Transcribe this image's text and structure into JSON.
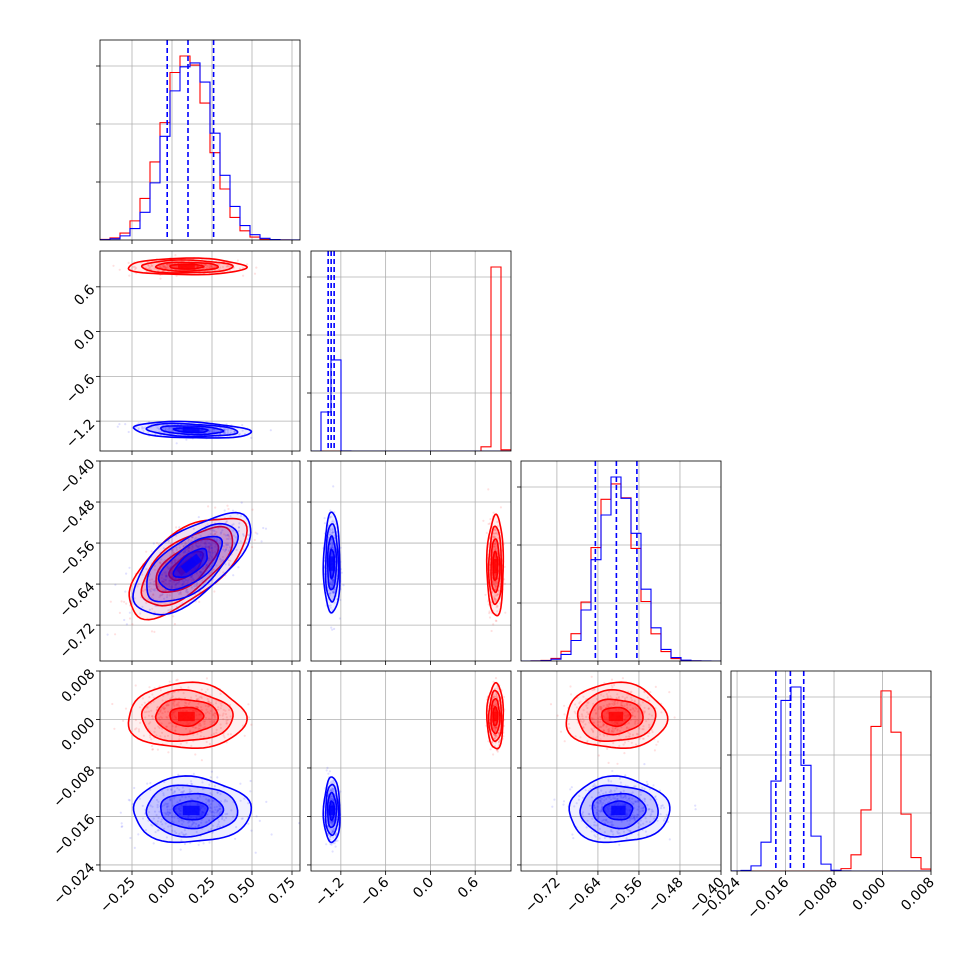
{
  "chart_data": {
    "type": "corner",
    "grid": true,
    "colors": {
      "red": "#ff0000",
      "blue": "#0000ff"
    },
    "quantile_line_style": "dashed",
    "params": [
      {
        "range": [
          -0.45,
          0.8
        ],
        "ticks": [
          -0.25,
          0.0,
          0.25,
          0.5,
          0.75
        ],
        "tick_labels": [
          "−0.25",
          "0.00",
          "0.25",
          "0.50",
          "0.75"
        ],
        "red": {
          "mean": 0.09,
          "sd": 0.15
        },
        "blue": {
          "mean": 0.12,
          "sd": 0.15
        },
        "quantiles": [
          -0.03,
          0.1,
          0.26
        ]
      },
      {
        "range": [
          -1.6,
          1.08
        ],
        "ticks": [
          -1.2,
          -0.6,
          0.0,
          0.6
        ],
        "tick_labels": [
          "−1.2",
          "−0.6",
          "0.0",
          "0.6"
        ],
        "red": {
          "mean": 0.87,
          "sd": 0.045
        },
        "blue": {
          "mean": -1.32,
          "sd": 0.045
        },
        "quantiles": [
          -1.37,
          -1.33,
          -1.29
        ]
      },
      {
        "range": [
          -0.79,
          -0.4
        ],
        "ticks": [
          -0.72,
          -0.64,
          -0.56,
          -0.48,
          -0.4
        ],
        "tick_labels": [
          "−0.72",
          "−0.64",
          "−0.56",
          "−0.48",
          "−0.40"
        ],
        "red": {
          "mean": -0.605,
          "sd": 0.04
        },
        "blue": {
          "mean": -0.6,
          "sd": 0.04
        },
        "quantiles": [
          -0.645,
          -0.604,
          -0.564
        ]
      },
      {
        "range": [
          -0.025,
          0.008
        ],
        "ticks": [
          -0.024,
          -0.016,
          -0.008,
          0.0,
          0.008
        ],
        "tick_labels": [
          "−0.024",
          "−0.016",
          "−0.008",
          "0.000",
          "0.008"
        ],
        "red": {
          "mean": 0.0005,
          "sd": 0.0022
        },
        "blue": {
          "mean": -0.015,
          "sd": 0.0022
        },
        "quantiles": [
          -0.0176,
          -0.0152,
          -0.013
        ]
      }
    ],
    "correlations": [
      {
        "pair": [
          0,
          1
        ],
        "red": 0.0,
        "blue": -0.25
      },
      {
        "pair": [
          0,
          2
        ],
        "red": 0.65,
        "blue": 0.65
      },
      {
        "pair": [
          1,
          2
        ],
        "red": 0.0,
        "blue": 0.0
      },
      {
        "pair": [
          0,
          3
        ],
        "red": 0.0,
        "blue": 0.0
      },
      {
        "pair": [
          1,
          3
        ],
        "red": 0.0,
        "blue": 0.0
      },
      {
        "pair": [
          2,
          3
        ],
        "red": 0.0,
        "blue": 0.0
      }
    ]
  }
}
